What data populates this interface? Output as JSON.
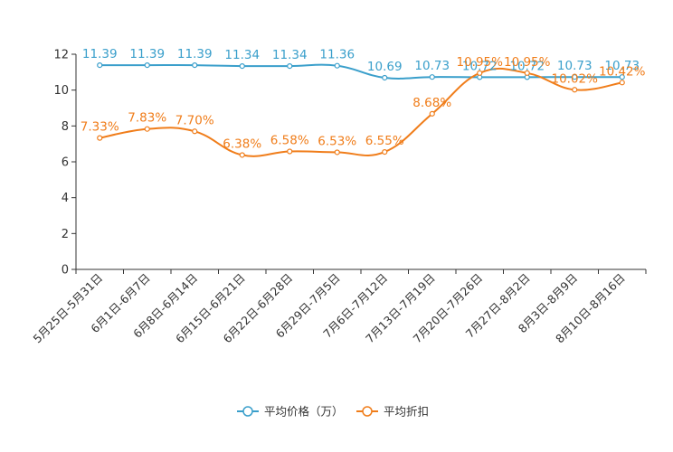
{
  "chart_data": {
    "type": "line",
    "categories": [
      "5月25日-5月31日",
      "6月1日-6月7日",
      "6月8日-6月14日",
      "6月15日-6月21日",
      "6月22日-6月28日",
      "6月29日-7月5日",
      "7月6日-7月12日",
      "7月13日-7月19日",
      "7月20日-7月26日",
      "7月27日-8月2日",
      "8月3日-8月9日",
      "8月10日-8月16日"
    ],
    "ylim": [
      0,
      12
    ],
    "yticks": [
      0,
      2,
      4,
      6,
      8,
      10,
      12
    ],
    "grid": false,
    "legend_position": "bottom-center",
    "series": [
      {
        "name": "平均价格（万）",
        "color": "#3a9fcb",
        "values": [
          11.39,
          11.39,
          11.39,
          11.34,
          11.34,
          11.36,
          10.69,
          10.73,
          10.72,
          10.72,
          10.73,
          10.73
        ],
        "labels": [
          "11.39",
          "11.39",
          "11.39",
          "11.34",
          "11.34",
          "11.36",
          "10.69",
          "10.73",
          "10.72",
          "10.72",
          "10.73",
          "10.73"
        ]
      },
      {
        "name": "平均折扣",
        "color": "#f07d1a",
        "values": [
          7.33,
          7.83,
          7.7,
          6.38,
          6.58,
          6.53,
          6.55,
          8.68,
          10.95,
          10.95,
          10.02,
          10.42
        ],
        "labels": [
          "7.33%",
          "7.83%",
          "7.70%",
          "6.38%",
          "6.58%",
          "6.53%",
          "6.55%",
          "8.68%",
          "10.95%",
          "10.95%",
          "10.02%",
          "10.42%"
        ]
      }
    ]
  }
}
